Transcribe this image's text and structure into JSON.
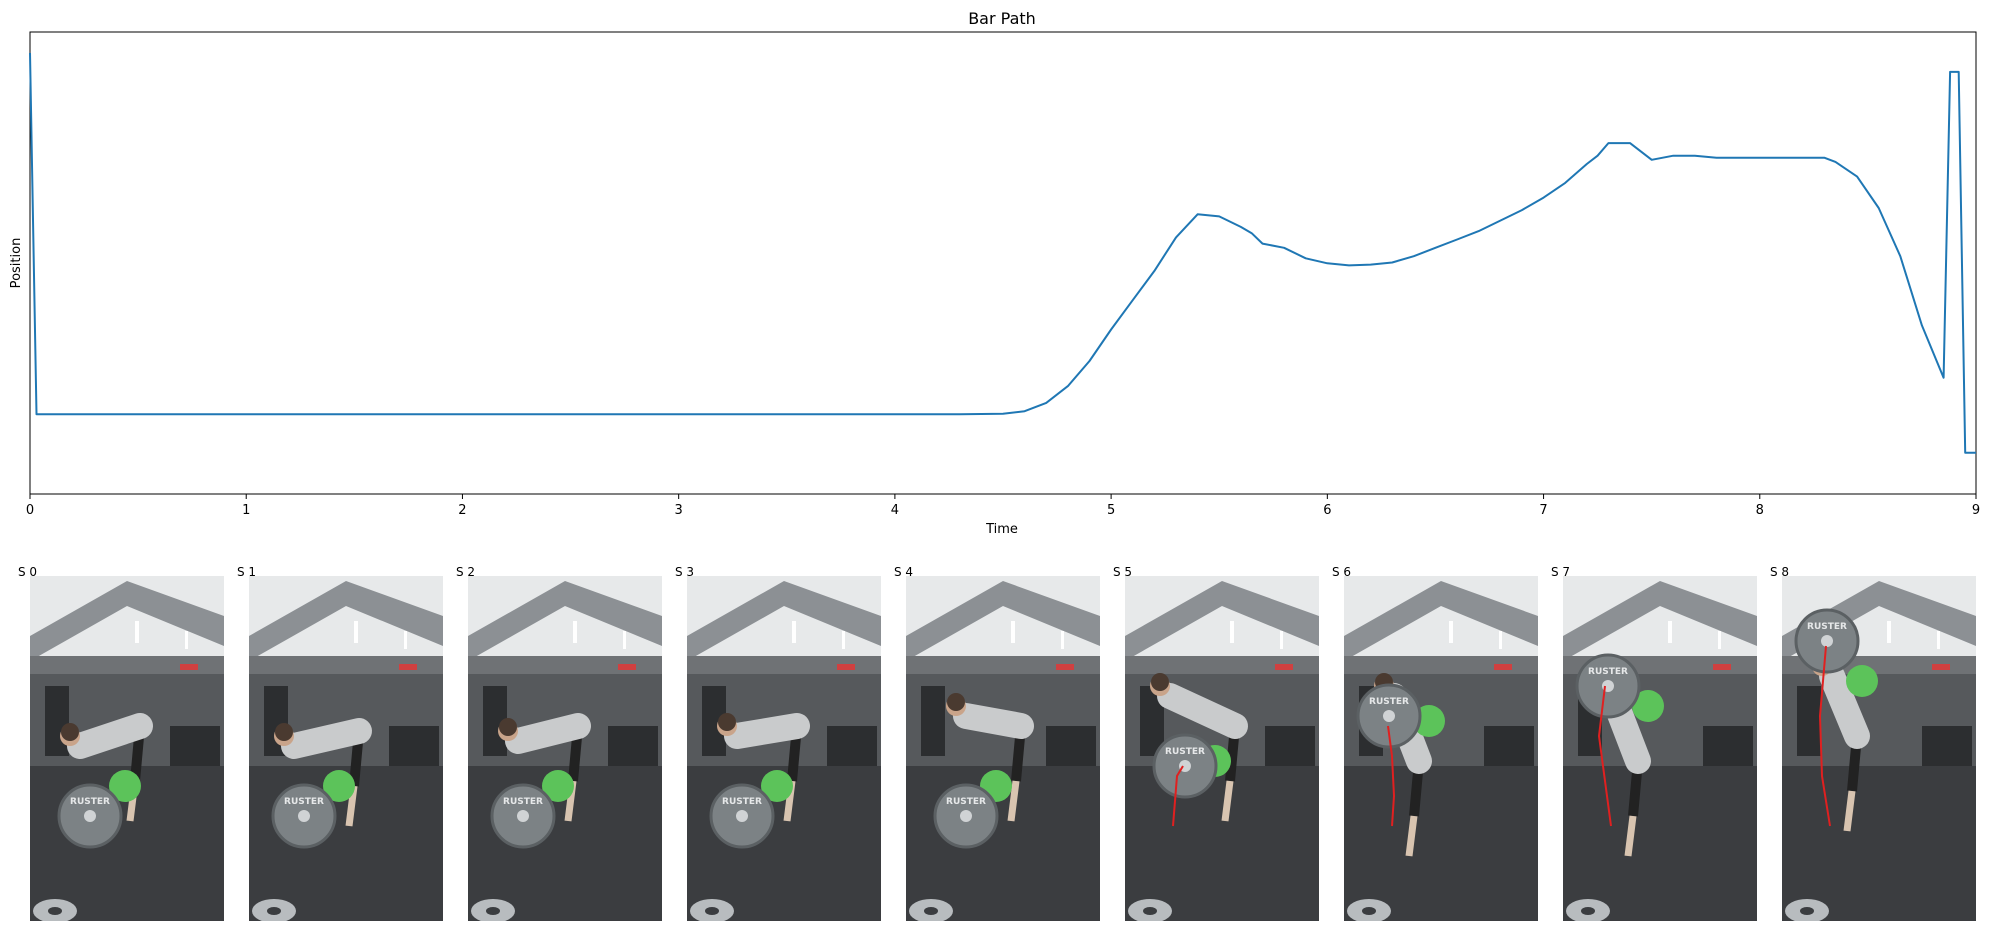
{
  "chart_data": {
    "type": "line",
    "title": "Bar Path",
    "xlabel": "Time",
    "ylabel": "Position",
    "xlim": [
      0,
      9
    ],
    "ylim": [
      0,
      100
    ],
    "xticks": [
      "0",
      "1",
      "2",
      "3",
      "4",
      "5",
      "6",
      "7",
      "8",
      "9"
    ],
    "yticks_shown": false,
    "grid": false,
    "legend": "none",
    "series": [
      {
        "color": "#1f77b4",
        "x": [
          0,
          0.03,
          0.2,
          0.4,
          0.8,
          1.5,
          2.2,
          3.0,
          3.8,
          4.3,
          4.5,
          4.6,
          4.7,
          4.8,
          4.9,
          5.0,
          5.1,
          5.2,
          5.3,
          5.4,
          5.5,
          5.6,
          5.65,
          5.7,
          5.8,
          5.9,
          6.0,
          6.1,
          6.2,
          6.3,
          6.4,
          6.5,
          6.6,
          6.7,
          6.8,
          6.9,
          7.0,
          7.1,
          7.2,
          7.25,
          7.3,
          7.4,
          7.5,
          7.6,
          7.7,
          7.8,
          7.9,
          8.0,
          8.1,
          8.2,
          8.3,
          8.35,
          8.45,
          8.55,
          8.65,
          8.75,
          8.85,
          8.88,
          8.92,
          8.95,
          8.98,
          9.0
        ],
        "y": [
          100,
          13.8,
          13.8,
          13.8,
          13.8,
          13.8,
          13.8,
          13.8,
          13.8,
          13.8,
          13.9,
          14.5,
          16.5,
          20.5,
          26.5,
          34,
          41,
          48,
          56,
          61.5,
          61,
          58.5,
          57,
          54.5,
          53.5,
          51,
          49.8,
          49.3,
          49.5,
          50,
          51.5,
          53.5,
          55.5,
          57.5,
          60,
          62.5,
          65.5,
          69,
          73.5,
          75.5,
          78.5,
          78.5,
          74.5,
          75.5,
          75.5,
          75,
          75,
          75,
          75,
          75,
          75,
          74,
          70.5,
          63,
          51.5,
          35,
          22.5,
          95.5,
          95.5,
          4.6,
          4.6,
          4.6
        ]
      }
    ]
  },
  "frames": [
    {
      "label": "S 0"
    },
    {
      "label": "S 1"
    },
    {
      "label": "S 2"
    },
    {
      "label": "S 3"
    },
    {
      "label": "S 4"
    },
    {
      "label": "S 5"
    },
    {
      "label": "S 6"
    },
    {
      "label": "S 7"
    },
    {
      "label": "S 8"
    }
  ],
  "plate_text": "RUSTER",
  "colors": {
    "line": "#1f77b4",
    "bar_path_overlay": "#e02020",
    "plate": "#7c8285",
    "bumper": "#5cc35a",
    "floor": "#3b3d40",
    "wall": "#56595c",
    "shirt": "#c9cbcc"
  }
}
